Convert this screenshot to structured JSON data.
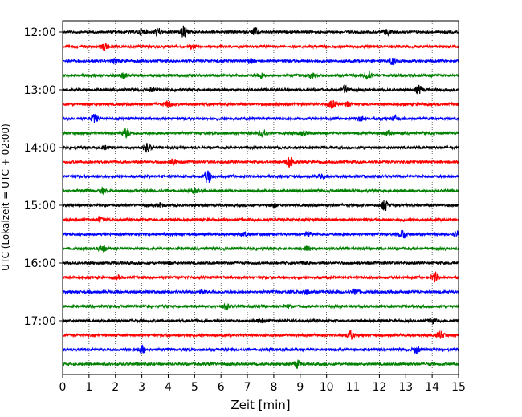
{
  "chart_data": {
    "type": "line",
    "title": "",
    "xlabel": "Zeit  [min]",
    "ylabel": "UTC (Lokalzeit = UTC + 02:00)",
    "xlim": [
      0,
      15
    ],
    "x_ticks": [
      "0",
      "1",
      "2",
      "3",
      "4",
      "5",
      "6",
      "7",
      "8",
      "9",
      "10",
      "11",
      "12",
      "13",
      "14",
      "15"
    ],
    "y_tick_labels": [
      "12:00",
      "13:00",
      "14:00",
      "15:00",
      "16:00",
      "17:00"
    ],
    "grid": "vertical dotted lines at every minute",
    "trace_colors": [
      "#000000",
      "#ff0000",
      "#0000ff",
      "#008000"
    ],
    "series": [
      {
        "start": "12:00",
        "color": "#000000",
        "events": [
          [
            3.0,
            0.45
          ],
          [
            3.6,
            0.55
          ],
          [
            4.6,
            0.8
          ],
          [
            7.3,
            0.5
          ],
          [
            12.3,
            0.35
          ]
        ]
      },
      {
        "start": "12:15",
        "color": "#ff0000",
        "events": [
          [
            1.6,
            0.45
          ],
          [
            4.9,
            0.25
          ]
        ]
      },
      {
        "start": "12:30",
        "color": "#0000ff",
        "events": [
          [
            2.0,
            0.25
          ],
          [
            7.1,
            0.3
          ],
          [
            12.5,
            0.5
          ]
        ]
      },
      {
        "start": "12:45",
        "color": "#008000",
        "events": [
          [
            2.3,
            0.3
          ],
          [
            7.5,
            0.4
          ],
          [
            9.4,
            0.3
          ],
          [
            11.6,
            0.6
          ]
        ]
      },
      {
        "start": "13:00",
        "color": "#000000",
        "events": [
          [
            3.4,
            0.2
          ],
          [
            10.7,
            0.45
          ],
          [
            13.5,
            0.55
          ]
        ]
      },
      {
        "start": "13:15",
        "color": "#ff0000",
        "events": [
          [
            4.0,
            0.4
          ],
          [
            10.2,
            0.5
          ],
          [
            10.8,
            0.3
          ]
        ]
      },
      {
        "start": "13:30",
        "color": "#0000ff",
        "events": [
          [
            1.2,
            0.55
          ],
          [
            11.3,
            0.3
          ],
          [
            12.6,
            0.35
          ]
        ]
      },
      {
        "start": "13:45",
        "color": "#008000",
        "events": [
          [
            2.4,
            0.6
          ],
          [
            7.6,
            0.5
          ],
          [
            9.1,
            0.3
          ],
          [
            12.3,
            0.3
          ]
        ]
      },
      {
        "start": "14:00",
        "color": "#000000",
        "events": [
          [
            3.2,
            0.55
          ],
          [
            1.6,
            0.2
          ]
        ]
      },
      {
        "start": "14:15",
        "color": "#ff0000",
        "events": [
          [
            4.2,
            0.4
          ],
          [
            8.6,
            0.75
          ]
        ]
      },
      {
        "start": "14:30",
        "color": "#0000ff",
        "events": [
          [
            5.5,
            0.85
          ],
          [
            9.8,
            0.25
          ]
        ]
      },
      {
        "start": "14:45",
        "color": "#008000",
        "events": [
          [
            1.5,
            0.3
          ],
          [
            5.0,
            0.25
          ]
        ]
      },
      {
        "start": "15:00",
        "color": "#000000",
        "events": [
          [
            3.7,
            0.2
          ],
          [
            8.0,
            0.25
          ],
          [
            12.2,
            0.7
          ]
        ]
      },
      {
        "start": "15:15",
        "color": "#ff0000",
        "events": [
          [
            1.4,
            0.25
          ]
        ]
      },
      {
        "start": "15:30",
        "color": "#0000ff",
        "events": [
          [
            6.9,
            0.25
          ],
          [
            9.3,
            0.3
          ],
          [
            12.9,
            0.55
          ],
          [
            14.9,
            0.3
          ]
        ]
      },
      {
        "start": "15:45",
        "color": "#008000",
        "events": [
          [
            1.5,
            0.5
          ],
          [
            9.3,
            0.35
          ]
        ]
      },
      {
        "start": "16:00",
        "color": "#000000",
        "events": [
          [
            4.0,
            0.15
          ],
          [
            9.2,
            0.15
          ]
        ]
      },
      {
        "start": "16:15",
        "color": "#ff0000",
        "events": [
          [
            2.1,
            0.2
          ],
          [
            14.1,
            0.6
          ]
        ]
      },
      {
        "start": "16:30",
        "color": "#0000ff",
        "events": [
          [
            5.3,
            0.2
          ],
          [
            9.2,
            0.35
          ],
          [
            11.1,
            0.4
          ]
        ]
      },
      {
        "start": "16:45",
        "color": "#008000",
        "events": [
          [
            6.2,
            0.3
          ],
          [
            8.5,
            0.2
          ]
        ]
      },
      {
        "start": "17:00",
        "color": "#000000",
        "events": [
          [
            7.5,
            0.25
          ],
          [
            14.0,
            0.3
          ]
        ]
      },
      {
        "start": "17:15",
        "color": "#ff0000",
        "events": [
          [
            10.9,
            0.55
          ],
          [
            14.3,
            0.5
          ]
        ]
      },
      {
        "start": "17:30",
        "color": "#0000ff",
        "events": [
          [
            3.0,
            0.5
          ],
          [
            13.4,
            0.45
          ]
        ]
      },
      {
        "start": "17:45",
        "color": "#008000",
        "events": [
          [
            8.9,
            0.5
          ],
          [
            5.6,
            0.2
          ]
        ]
      }
    ]
  }
}
